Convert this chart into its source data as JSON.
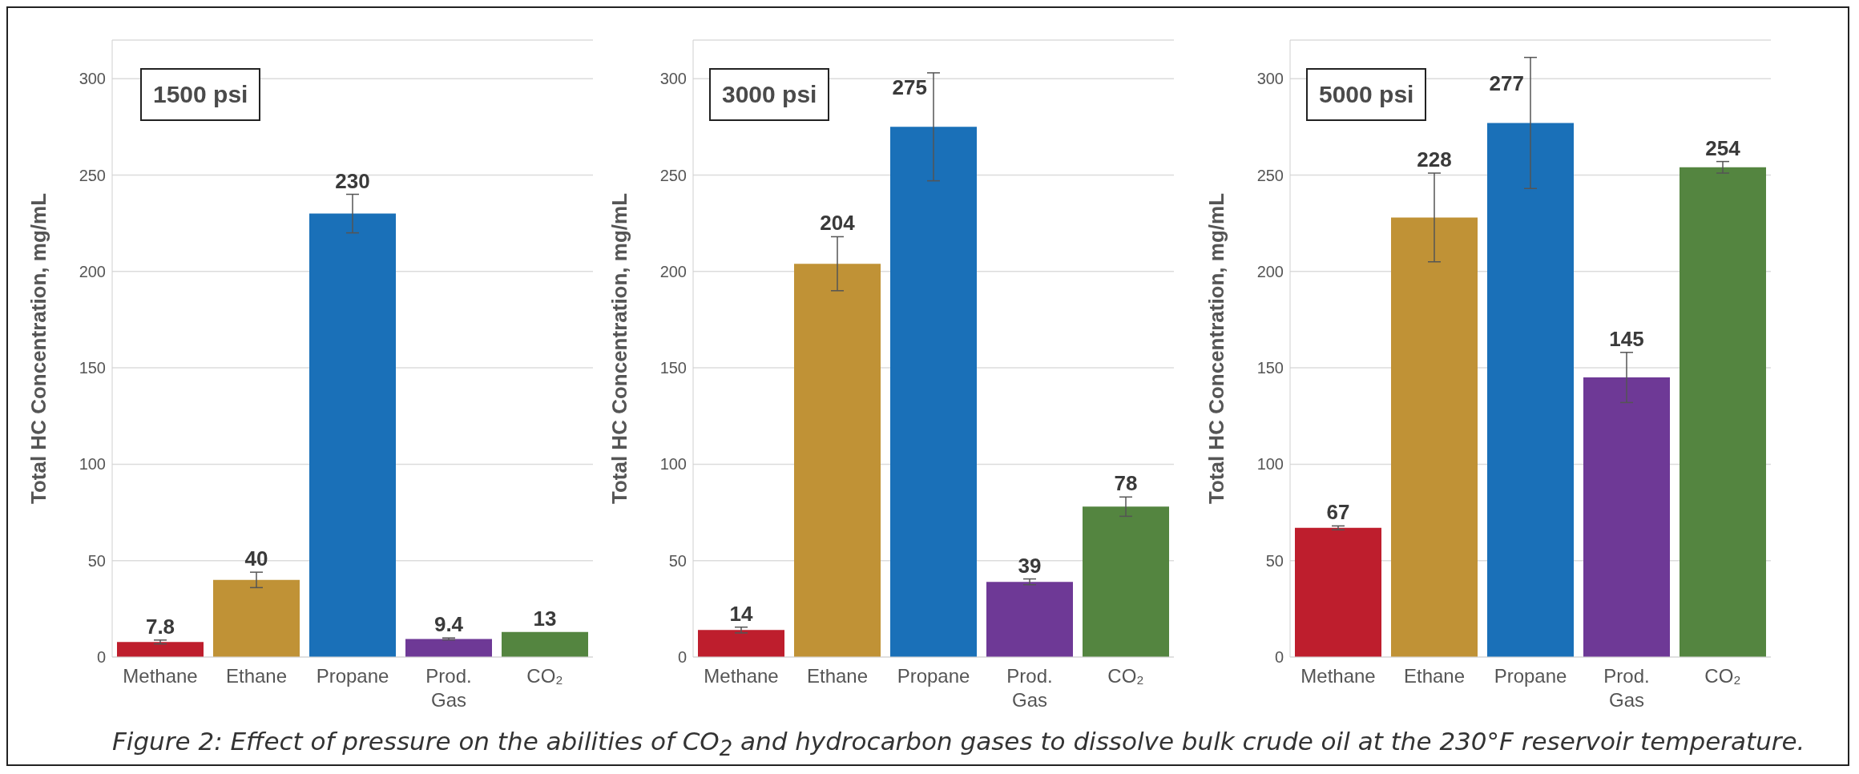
{
  "chart_data": [
    {
      "type": "bar",
      "title": "1500 psi",
      "ylabel": "Total HC Concentration, mg/mL",
      "categories": [
        "Methane",
        "Ethane",
        "Propane",
        "Prod. Gas",
        "CO₂"
      ],
      "values": [
        7.8,
        40,
        230,
        9.4,
        13
      ],
      "errors": [
        1,
        4,
        10,
        0.5,
        null
      ],
      "colors": [
        "#be1e2d",
        "#c09236",
        "#1a70b8",
        "#6e3996",
        "#548540"
      ],
      "ylim": [
        0,
        320
      ],
      "yticks": [
        0,
        50,
        100,
        150,
        200,
        250,
        300
      ],
      "grid": "y",
      "data_labels": true,
      "annotations": [
        "Figure 2: Effect of pressure on the abilities of CO$_{2}$ and hydrocarbon gases to dissolve bulk crude oil at the 230°F reservoir temperature."
      ]
    },
    {
      "type": "bar",
      "title": "3000 psi",
      "ylabel": "Total HC Concentration, mg/mL",
      "categories": [
        "Methane",
        "Ethane",
        "Propane",
        "Prod. Gas",
        "CO₂"
      ],
      "values": [
        14,
        204,
        275,
        39,
        78
      ],
      "errors": [
        1.5,
        14,
        28,
        1.5,
        5
      ],
      "colors": [
        "#be1e2d",
        "#c09236",
        "#1a70b8",
        "#6e3996",
        "#548540"
      ],
      "ylim": [
        0,
        320
      ],
      "yticks": [
        0,
        50,
        100,
        150,
        200,
        250,
        300
      ],
      "grid": "y",
      "data_labels": true
    },
    {
      "type": "bar",
      "title": "5000 psi",
      "ylabel": "Total HC Concentration, mg/mL",
      "categories": [
        "Methane",
        "Ethane",
        "Propane",
        "Prod. Gas",
        "CO₂"
      ],
      "values": [
        67,
        228,
        277,
        145,
        254
      ],
      "errors": [
        1,
        23,
        34,
        13,
        3
      ],
      "colors": [
        "#be1e2d",
        "#c09236",
        "#1a70b8",
        "#6e3996",
        "#548540"
      ],
      "ylim": [
        0,
        320
      ],
      "yticks": [
        0,
        50,
        100,
        150,
        200,
        250,
        300
      ],
      "grid": "y",
      "data_labels": true
    }
  ]
}
